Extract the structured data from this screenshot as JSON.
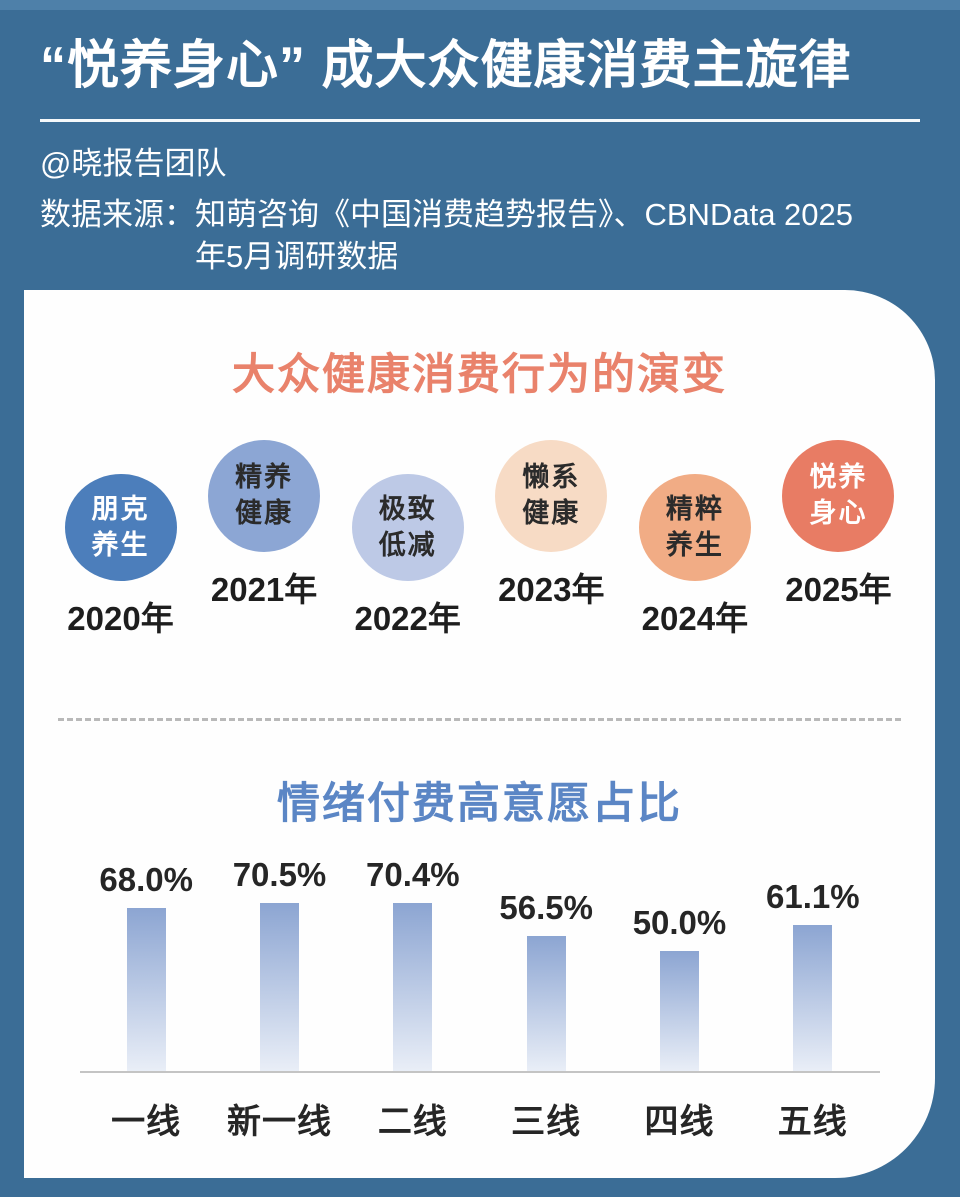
{
  "colors": {
    "background": "#3B6D96",
    "background_top": "#4E80A9",
    "card": "#FEFEFE",
    "header_text": "#FFFFFF",
    "evolution_title": "#E9826B",
    "chart_title": "#5B86C5",
    "divider": "#B9B9B9",
    "axis_line": "#C4C4C4",
    "bar_top": "#8CA5D2",
    "bar_bottom": "#E9EEF7"
  },
  "header": {
    "title": "“悦养身心” 成大众健康消费主旋律",
    "byline": "@晓报告团队",
    "source_label": "数据来源：",
    "source_line1": "知萌咨询《中国消费趋势报告》、CBNData 2025",
    "source_line2": "年5月调研数据"
  },
  "evolution": {
    "title": "大众健康消费行为的演变",
    "stages": [
      {
        "line1": "朋克",
        "line2": "养生",
        "year": "2020年",
        "bg": "#4C7EBB",
        "text_color": "#FFFFFF"
      },
      {
        "line1": "精养",
        "line2": "健康",
        "year": "2021年",
        "bg": "#8CA6D4",
        "text_color": "#2B2B2B"
      },
      {
        "line1": "极致",
        "line2": "低减",
        "year": "2022年",
        "bg": "#BDC9E6",
        "text_color": "#2B2B2B"
      },
      {
        "line1": "懒系",
        "line2": "健康",
        "year": "2023年",
        "bg": "#F7DBC5",
        "text_color": "#2B2B2B"
      },
      {
        "line1": "精粹",
        "line2": "养生",
        "year": "2024年",
        "bg": "#F1AC85",
        "text_color": "#2B2B2B"
      },
      {
        "line1": "悦养",
        "line2": "身心",
        "year": "2025年",
        "bg": "#E87C64",
        "text_color": "#FFFFFF"
      }
    ]
  },
  "chart_data": {
    "type": "bar",
    "title": "情绪付费高意愿占比",
    "categories": [
      "一线",
      "新一线",
      "二线",
      "三线",
      "四线",
      "五线"
    ],
    "values": [
      68.0,
      70.5,
      70.4,
      56.5,
      50.0,
      61.1
    ],
    "value_labels": [
      "68.0%",
      "70.5%",
      "70.4%",
      "56.5%",
      "50.0%",
      "61.1%"
    ],
    "xlabel": "",
    "ylabel": "",
    "ylim": [
      0,
      75
    ],
    "grid": false,
    "legend": false,
    "bar_gradient": [
      "#8CA5D2",
      "#E9EEF7"
    ]
  }
}
